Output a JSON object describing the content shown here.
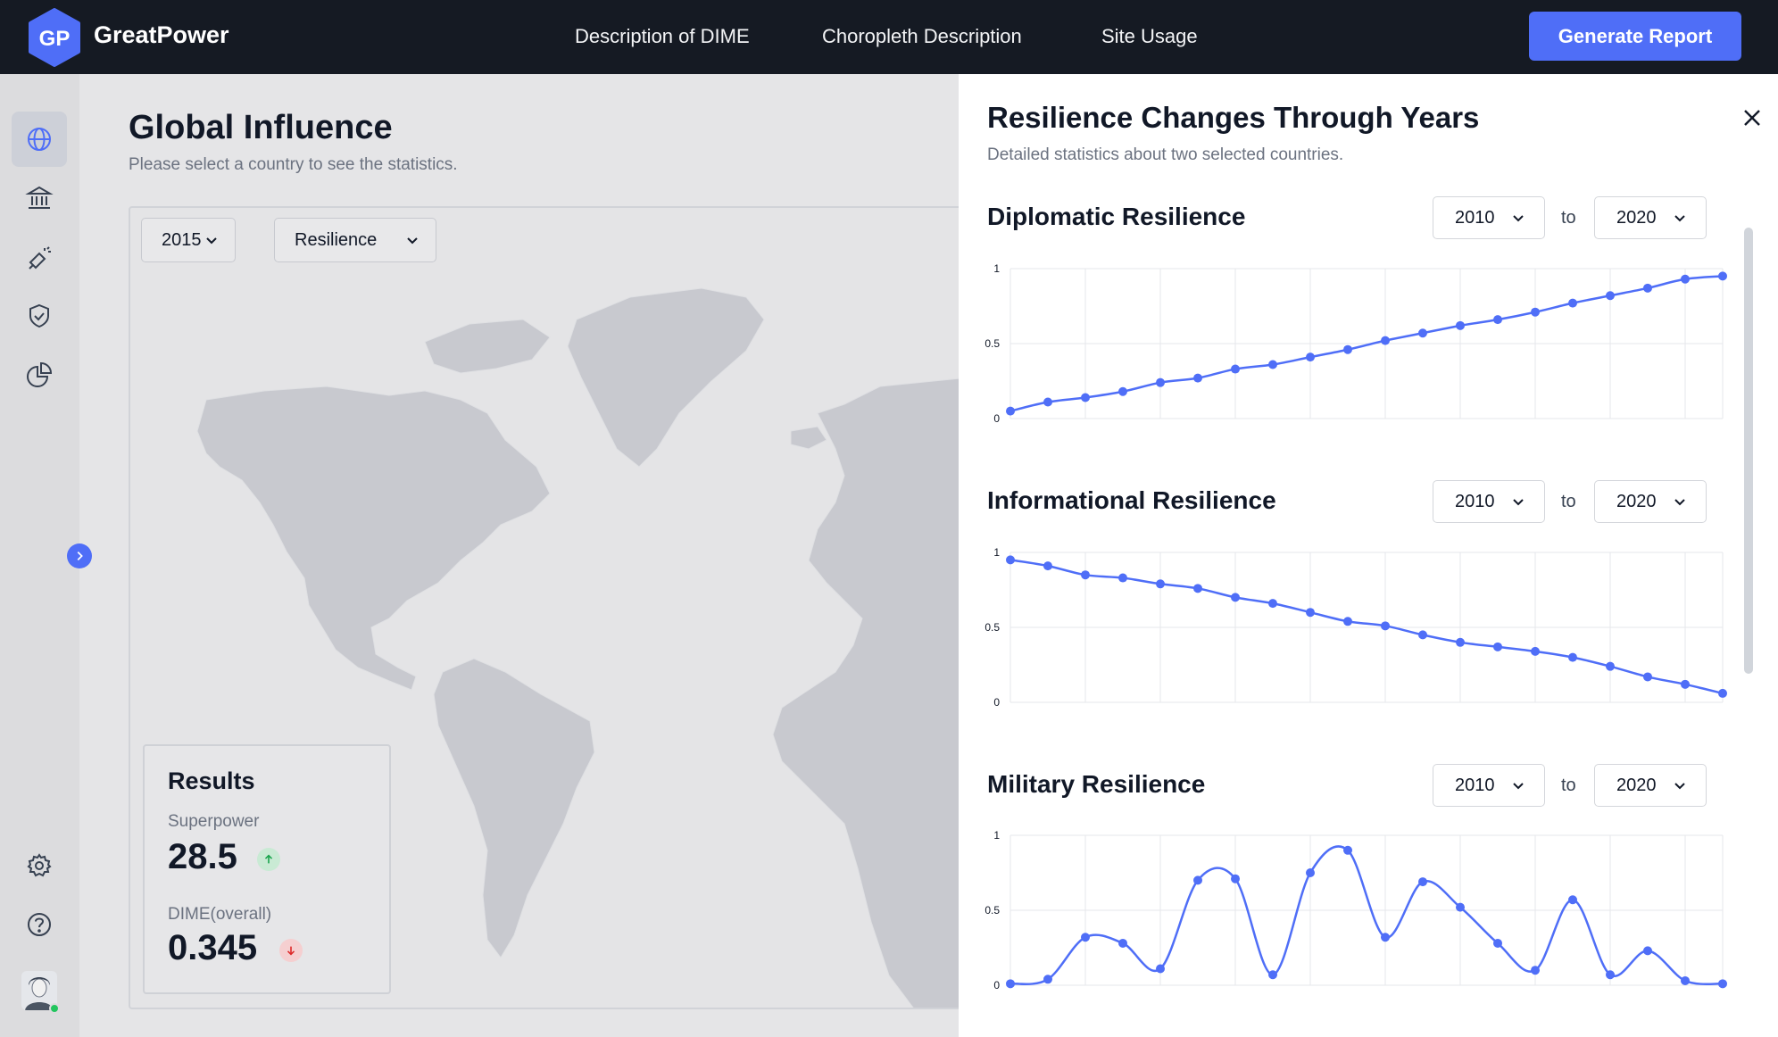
{
  "app": {
    "logo_text": "GP",
    "name": "GreatPower"
  },
  "nav": [
    {
      "label": "Description of DIME"
    },
    {
      "label": "Choropleth Description"
    },
    {
      "label": "Site Usage"
    }
  ],
  "header": {
    "generate_label": "Generate Report"
  },
  "sidebar": {
    "items": [
      {
        "icon": "globe-icon",
        "active": true
      },
      {
        "icon": "bank-icon",
        "active": false
      },
      {
        "icon": "megaphone-icon",
        "active": false
      },
      {
        "icon": "shield-check-icon",
        "active": false
      },
      {
        "icon": "pie-chart-icon",
        "active": false
      }
    ],
    "bottom": [
      {
        "icon": "gear-icon"
      },
      {
        "icon": "help-icon"
      }
    ]
  },
  "main": {
    "title": "Global Influence",
    "subtitle": "Please select a country to see the statistics.",
    "year_select": "2015",
    "metric_select": "Resilience"
  },
  "results": {
    "title": "Results",
    "superpower_label": "Superpower",
    "superpower_value": "28.5",
    "superpower_trend": "up",
    "dime_label": "DIME(overall)",
    "dime_value": "0.345",
    "dime_trend": "down"
  },
  "panel": {
    "title": "Resilience Changes Through Years",
    "subtitle": "Detailed statistics about two selected countries.",
    "to_label": "to",
    "sections": [
      {
        "title": "Diplomatic Resilience",
        "from": "2010",
        "to": "2020"
      },
      {
        "title": "Informational Resilience",
        "from": "2010",
        "to": "2020"
      },
      {
        "title": "Military Resilience",
        "from": "2010",
        "to": "2020"
      }
    ]
  },
  "colors": {
    "accent": "#4f6ef7",
    "up": "#22c55e",
    "down": "#ef4444",
    "topbar": "#151a23"
  },
  "chart_data": [
    {
      "type": "line",
      "title": "Diplomatic Resilience",
      "x": [
        2010,
        2010.5,
        2011,
        2011.5,
        2012,
        2012.5,
        2013,
        2013.5,
        2014,
        2014.5,
        2015,
        2015.5,
        2016,
        2016.5,
        2017,
        2017.5,
        2018,
        2018.5,
        2019,
        2019.5
      ],
      "y": [
        0.05,
        0.11,
        0.14,
        0.18,
        0.24,
        0.27,
        0.33,
        0.36,
        0.41,
        0.46,
        0.52,
        0.57,
        0.62,
        0.66,
        0.71,
        0.77,
        0.82,
        0.87,
        0.93,
        0.95
      ],
      "xticks": [
        "2010",
        "2011",
        "2012",
        "2013",
        "2014",
        "2015",
        "2016",
        "2017",
        "2018",
        "2019"
      ],
      "yticks": [
        "0",
        "0.5",
        "1"
      ],
      "ylim": [
        0,
        1
      ],
      "grid": true
    },
    {
      "type": "line",
      "title": "Informational Resilience",
      "x": [
        2010,
        2010.5,
        2011,
        2011.5,
        2012,
        2012.5,
        2013,
        2013.5,
        2014,
        2014.5,
        2015,
        2015.5,
        2016,
        2016.5,
        2017,
        2017.5,
        2018,
        2018.5,
        2019,
        2019.5
      ],
      "y": [
        0.95,
        0.91,
        0.85,
        0.83,
        0.79,
        0.76,
        0.7,
        0.66,
        0.6,
        0.54,
        0.51,
        0.45,
        0.4,
        0.37,
        0.34,
        0.3,
        0.24,
        0.17,
        0.12,
        0.06
      ],
      "xticks": [
        "2010",
        "2011",
        "2012",
        "2013",
        "2014",
        "2015",
        "2016",
        "2017",
        "2018",
        "2019"
      ],
      "yticks": [
        "0",
        "0.5",
        "1"
      ],
      "ylim": [
        0,
        1
      ],
      "grid": true
    },
    {
      "type": "line",
      "title": "Military Resilience",
      "x": [
        2010,
        2010.5,
        2011,
        2011.5,
        2012,
        2012.5,
        2013,
        2013.5,
        2014,
        2014.5,
        2015,
        2015.5,
        2016,
        2016.5,
        2017,
        2017.5,
        2018,
        2018.5,
        2019,
        2019.5
      ],
      "y": [
        0.01,
        0.04,
        0.32,
        0.28,
        0.11,
        0.7,
        0.71,
        0.07,
        0.75,
        0.9,
        0.32,
        0.69,
        0.52,
        0.28,
        0.1,
        0.57,
        0.07,
        0.23,
        0.03,
        0.01
      ],
      "xticks": [
        "2010",
        "2011",
        "2012",
        "2013",
        "2014",
        "2015",
        "2016",
        "2017",
        "2018",
        "2019"
      ],
      "yticks": [
        "0",
        "0.5",
        "1"
      ],
      "ylim": [
        0,
        1
      ],
      "grid": true
    }
  ]
}
